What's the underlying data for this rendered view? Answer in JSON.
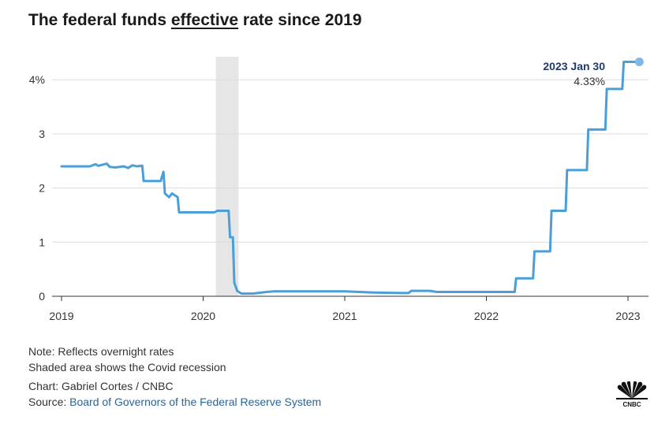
{
  "title": {
    "before": "The federal funds ",
    "underlined": "effective",
    "after": " rate since 2019"
  },
  "chart_data": {
    "type": "line",
    "title": "The federal funds effective rate since 2019",
    "xlabel": "",
    "ylabel": "",
    "xlim": [
      2019.0,
      2023.15
    ],
    "ylim": [
      0,
      4.6
    ],
    "y_ticks": [
      0,
      1,
      2,
      3,
      4
    ],
    "y_tick_labels": [
      "0",
      "1",
      "2",
      "3",
      "4%"
    ],
    "x_ticks": [
      2019,
      2020,
      2021,
      2022,
      2023
    ],
    "x_tick_labels": [
      "2019",
      "2020",
      "2021",
      "2022",
      "2023"
    ],
    "grid": true,
    "line_color": "#4a9fd9",
    "shade_color": "#e6e6e6",
    "shaded_region": [
      2020.09,
      2020.25
    ],
    "series": [
      {
        "x": [
          2019.0,
          2019.2,
          2019.24,
          2019.26,
          2019.32,
          2019.34,
          2019.38,
          2019.44,
          2019.47,
          2019.5,
          2019.53,
          2019.57,
          2019.58,
          2019.7,
          2019.72,
          2019.73,
          2019.76,
          2019.78,
          2019.82,
          2019.83,
          2020.08,
          2020.1,
          2020.18,
          2020.19,
          2020.21,
          2020.22,
          2020.24,
          2020.27,
          2020.35,
          2020.45,
          2020.5,
          2020.6,
          2020.8,
          2021.0,
          2021.2,
          2021.4,
          2021.45,
          2021.47,
          2021.6,
          2021.65,
          2021.8,
          2022.0,
          2022.2,
          2022.21,
          2022.33,
          2022.34,
          2022.45,
          2022.46,
          2022.56,
          2022.57,
          2022.71,
          2022.72,
          2022.84,
          2022.85,
          2022.96,
          2022.97,
          2023.08
        ],
        "y": [
          2.4,
          2.4,
          2.44,
          2.41,
          2.45,
          2.39,
          2.38,
          2.4,
          2.37,
          2.42,
          2.4,
          2.41,
          2.13,
          2.13,
          2.3,
          1.9,
          1.83,
          1.9,
          1.83,
          1.55,
          1.55,
          1.58,
          1.58,
          1.09,
          1.09,
          0.25,
          0.1,
          0.05,
          0.05,
          0.08,
          0.09,
          0.09,
          0.09,
          0.09,
          0.07,
          0.06,
          0.06,
          0.1,
          0.1,
          0.08,
          0.08,
          0.08,
          0.08,
          0.33,
          0.33,
          0.83,
          0.83,
          1.58,
          1.58,
          2.33,
          2.33,
          3.08,
          3.08,
          3.83,
          3.83,
          4.33,
          4.33
        ]
      }
    ],
    "annotation": {
      "label": "2023 Jan 30",
      "value": "4.33%",
      "x": 2023.08,
      "y": 4.33
    }
  },
  "notes": {
    "line1": "Note: Reflects overnight rates",
    "line2": "Shaded area shows the Covid recession"
  },
  "credit": {
    "chart_by": "Chart: Gabriel Cortes / CNBC",
    "source_prefix": "Source: ",
    "source_link": "Board of Governors of the Federal Reserve System"
  },
  "logo": {
    "icon": "cnbc-peacock-icon",
    "text": "CNBC"
  }
}
